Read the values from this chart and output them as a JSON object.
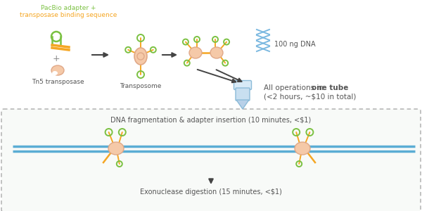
{
  "bg_color": "#ffffff",
  "arrow_color": "#444444",
  "green_color": "#7bc142",
  "orange_color": "#f5a623",
  "salmon_color": "#f5c9a8",
  "blue_color": "#5badd4",
  "text_dark": "#555555",
  "title_text1": "PacBio adapter +",
  "title_text2": "transposase binding sequence",
  "label_tn5": "Tn5 transposase",
  "label_transposome": "Transposome",
  "label_dna": "100 ng DNA",
  "label_one_tube_1": "All operations in ",
  "label_one_tube_bold": "one tube",
  "label_one_tube_2": "(<2 hours, ~$10 in total)",
  "label_frag": "DNA fragmentation & adapter insertion (10 minutes, <$1)",
  "label_exo": "Exonuclease digestion (15 minutes, <$1)",
  "figsize": [
    6.0,
    3.0
  ],
  "dpi": 100
}
